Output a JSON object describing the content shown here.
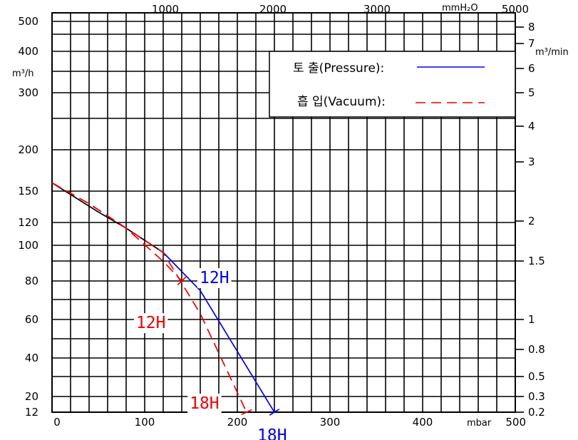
{
  "chart_data": {
    "type": "line",
    "x_bottom": {
      "unit": "mbar",
      "ticks": [
        {
          "value": 0,
          "label": "0"
        },
        {
          "value": 100,
          "label": "100"
        },
        {
          "value": 200,
          "label": "200"
        },
        {
          "value": 300,
          "label": "300"
        },
        {
          "value": 400,
          "label": "400"
        },
        {
          "value": 500,
          "label": "500"
        }
      ],
      "range": [
        0,
        500
      ]
    },
    "x_top": {
      "unit": "mmH₂O",
      "ticks": [
        {
          "value": 1000,
          "label": "1000"
        },
        {
          "value": 2000,
          "label": "2000"
        },
        {
          "value": 3000,
          "label": "3000"
        },
        {
          "value": 5000,
          "label": "5000"
        }
      ]
    },
    "y_left": {
      "unit": "m³/h",
      "ticks": [
        {
          "value": 500,
          "label": "500"
        },
        {
          "value": 400,
          "label": "400"
        },
        {
          "value": 300,
          "label": "300"
        },
        {
          "value": 200,
          "label": "200"
        },
        {
          "value": 150,
          "label": "150"
        },
        {
          "value": 120,
          "label": "120"
        },
        {
          "value": 100,
          "label": "100"
        },
        {
          "value": 80,
          "label": "80"
        },
        {
          "value": 60,
          "label": "60"
        },
        {
          "value": 40,
          "label": "40"
        },
        {
          "value": 20,
          "label": "20"
        },
        {
          "value": 12,
          "label": "12"
        }
      ]
    },
    "y_right": {
      "unit": "m³/min",
      "ticks": [
        {
          "value": 8,
          "label": "8"
        },
        {
          "value": 7,
          "label": "7"
        },
        {
          "value": 6,
          "label": "6"
        },
        {
          "value": 5,
          "label": "5"
        },
        {
          "value": 4,
          "label": "4"
        },
        {
          "value": 3,
          "label": "3"
        },
        {
          "value": 2,
          "label": "2"
        },
        {
          "value": 1.5,
          "label": "1.5"
        },
        {
          "value": 1,
          "label": "1"
        },
        {
          "value": 0.8,
          "label": "0.8"
        },
        {
          "value": 0.5,
          "label": "0.5"
        },
        {
          "value": 0.3,
          "label": "0.3"
        },
        {
          "value": 0.2,
          "label": "0.2"
        }
      ]
    },
    "legend": {
      "position": "top-right",
      "entries": [
        {
          "label": "토 출(Pressure):",
          "color": "#0000ee",
          "dash": "solid"
        },
        {
          "label": "흡 입(Vacuum):",
          "color": "#ee0000",
          "dash": "dashed"
        }
      ]
    },
    "series": [
      {
        "color": "#000000",
        "dash": "solid",
        "points": [
          [
            0,
            160
          ],
          [
            50,
            130
          ],
          [
            80,
            115
          ],
          [
            120,
            96
          ]
        ]
      },
      {
        "color": "#0000ee",
        "dash": "solid",
        "points": [
          [
            120,
            96
          ],
          [
            160,
            75
          ],
          [
            240,
            12
          ]
        ]
      },
      {
        "color": "#ee0000",
        "dash": "dashed",
        "points": [
          [
            0,
            160
          ],
          [
            40,
            138
          ],
          [
            80,
            115
          ],
          [
            120,
            91
          ],
          [
            140,
            80
          ]
        ]
      },
      {
        "color": "#ee0000",
        "dash": "dashed",
        "points": [
          [
            0,
            160
          ],
          [
            40,
            138
          ],
          [
            80,
            115
          ],
          [
            120,
            96
          ],
          [
            160,
            63
          ],
          [
            210,
            12
          ]
        ]
      }
    ],
    "annotations": [
      {
        "text": "12H",
        "color": "#0000ee",
        "at": [
          150,
          80
        ]
      },
      {
        "text": "12H",
        "color": "#ee0000",
        "at": [
          133,
          74
        ]
      },
      {
        "text": "18H",
        "color": "#0000ee",
        "at": [
          240,
          12
        ]
      },
      {
        "text": "18H",
        "color": "#ee0000",
        "at": [
          207,
          12
        ]
      }
    ],
    "grid": true
  }
}
